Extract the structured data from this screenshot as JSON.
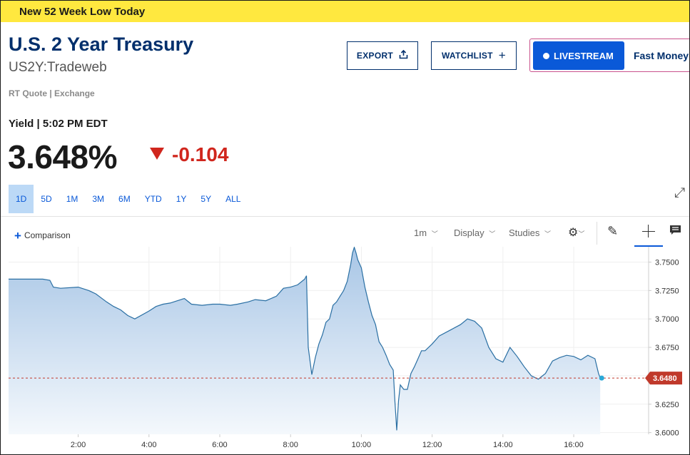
{
  "banner": {
    "text": "New 52 Week Low Today"
  },
  "quote": {
    "title": "U.S. 2 Year Treasury",
    "symbol": "US2Y:Tradeweb",
    "source_note": "RT Quote | Exchange",
    "yield_label": "Yield | 5:02 PM EDT",
    "price": "3.648%",
    "change": "-0.104"
  },
  "actions": {
    "export_label": "EXPORT",
    "watchlist_label": "WATCHLIST",
    "livestream_label": "LIVESTREAM",
    "livestream_show": "Fast Money"
  },
  "range_tabs": [
    {
      "label": "1D",
      "active": true
    },
    {
      "label": "5D",
      "active": false
    },
    {
      "label": "1M",
      "active": false
    },
    {
      "label": "3M",
      "active": false
    },
    {
      "label": "6M",
      "active": false
    },
    {
      "label": "YTD",
      "active": false
    },
    {
      "label": "1Y",
      "active": false
    },
    {
      "label": "5Y",
      "active": false
    },
    {
      "label": "ALL",
      "active": false
    }
  ],
  "toolbar": {
    "comparison_label": "Comparison",
    "interval_label": "1m",
    "display_label": "Display",
    "studies_label": "Studies"
  },
  "icons": {
    "export": "export-icon",
    "watchlist": "plus-icon",
    "live": "live-dot-icon",
    "expand": "expand-icon",
    "settings": "gear-icon",
    "draw": "pencil-icon",
    "crosshair": "crosshair-icon",
    "annotate": "comment-icon"
  },
  "colors": {
    "brand_navy": "#002f6c",
    "accent_blue": "#0a59d8",
    "negative_red": "#d0261d",
    "banner_yellow": "#ffe83f",
    "line": "#2a6fa3",
    "current_marker": "#29a9d8"
  },
  "chart_data": {
    "type": "area",
    "x_ticks": [
      "2:00",
      "4:00",
      "6:00",
      "8:00",
      "10:00",
      "12:00",
      "14:00",
      "16:00"
    ],
    "x_tick_hours": [
      2,
      4,
      6,
      8,
      10,
      12,
      14,
      16
    ],
    "y_ticks": [
      "3.7500",
      "3.7250",
      "3.7000",
      "3.6750",
      "3.6500",
      "3.6250",
      "3.6000"
    ],
    "y_tick_values": [
      3.75,
      3.725,
      3.7,
      3.675,
      3.65,
      3.625,
      3.6
    ],
    "ylim": [
      3.5985,
      3.7635
    ],
    "xlim": [
      0.033,
      18.116
    ],
    "last_value": 3.648,
    "last_value_label": "3.6480",
    "grid": true,
    "series": [
      {
        "hours": [
          0.033,
          0.5,
          1.0,
          1.2,
          1.3,
          1.5,
          2.0,
          2.3,
          2.5,
          2.8,
          3.0,
          3.2,
          3.4,
          3.6,
          4.0,
          4.2,
          4.4,
          4.6,
          4.8,
          5.0,
          5.2,
          5.5,
          5.8,
          6.0,
          6.3,
          6.5,
          6.8,
          7.0,
          7.3,
          7.6,
          7.8,
          8.0,
          8.2,
          8.4,
          8.45,
          8.5,
          8.6,
          8.7,
          8.8,
          8.9,
          9.0,
          9.1,
          9.2,
          9.3,
          9.4,
          9.5,
          9.6,
          9.7,
          9.75,
          9.8,
          9.85,
          9.9,
          10.0,
          10.1,
          10.2,
          10.3,
          10.4,
          10.5,
          10.6,
          10.7,
          10.8,
          10.9,
          10.95,
          11.0,
          11.05,
          11.1,
          11.2,
          11.3,
          11.4,
          11.5,
          11.6,
          11.7,
          11.8,
          11.9,
          12.0,
          12.2,
          12.5,
          12.8,
          13.0,
          13.2,
          13.4,
          13.6,
          13.8,
          14.0,
          14.2,
          14.4,
          14.6,
          14.8,
          15.0,
          15.2,
          15.4,
          15.6,
          15.8,
          16.0,
          16.2,
          16.4,
          16.6,
          16.7,
          16.75
        ],
        "values": [
          3.735,
          3.735,
          3.735,
          3.734,
          3.728,
          3.727,
          3.728,
          3.725,
          3.722,
          3.715,
          3.711,
          3.708,
          3.703,
          3.7,
          3.707,
          3.711,
          3.713,
          3.714,
          3.716,
          3.718,
          3.713,
          3.712,
          3.713,
          3.713,
          3.712,
          3.713,
          3.715,
          3.717,
          3.716,
          3.72,
          3.727,
          3.728,
          3.73,
          3.735,
          3.738,
          3.675,
          3.651,
          3.666,
          3.678,
          3.686,
          3.697,
          3.7,
          3.712,
          3.715,
          3.72,
          3.725,
          3.733,
          3.748,
          3.758,
          3.763,
          3.758,
          3.752,
          3.745,
          3.728,
          3.715,
          3.703,
          3.695,
          3.68,
          3.675,
          3.668,
          3.66,
          3.655,
          3.627,
          3.602,
          3.628,
          3.642,
          3.638,
          3.638,
          3.652,
          3.658,
          3.665,
          3.672,
          3.672,
          3.675,
          3.678,
          3.685,
          3.69,
          3.695,
          3.7,
          3.698,
          3.692,
          3.675,
          3.665,
          3.662,
          3.675,
          3.667,
          3.658,
          3.65,
          3.647,
          3.652,
          3.663,
          3.666,
          3.668,
          3.667,
          3.664,
          3.668,
          3.665,
          3.652,
          3.648
        ]
      }
    ]
  }
}
